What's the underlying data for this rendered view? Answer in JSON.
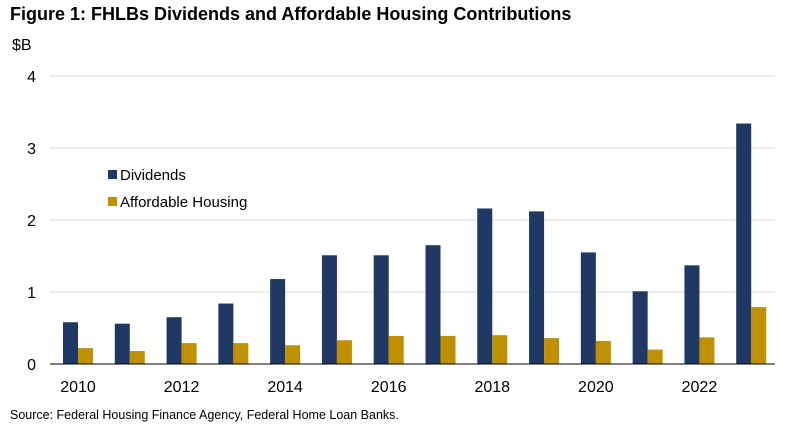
{
  "title": "Figure 1: FHLBs Dividends and Affordable Housing Contributions",
  "source": "Source: Federal Housing Finance Agency, Federal Home Loan Banks.",
  "colors": {
    "dividends": "#1f3864",
    "affordable_housing": "#bf9000",
    "grid": "#d9d9d9",
    "axis": "#000000"
  },
  "chart_data": {
    "type": "bar",
    "title": "Figure 1: FHLBs Dividends and Affordable Housing Contributions",
    "ylabel": "$B",
    "ylim": [
      0,
      4
    ],
    "yticks": [
      "0",
      "1",
      "2",
      "3",
      "4"
    ],
    "categories": [
      2010,
      2011,
      2012,
      2013,
      2014,
      2015,
      2016,
      2017,
      2018,
      2019,
      2020,
      2021,
      2022,
      2023
    ],
    "xtick_labels": [
      "2010",
      "",
      "2012",
      "",
      "2014",
      "",
      "2016",
      "",
      "2018",
      "",
      "2020",
      "",
      "2022",
      ""
    ],
    "series": [
      {
        "name": "Dividends",
        "values": [
          0.58,
          0.56,
          0.65,
          0.84,
          1.18,
          1.51,
          1.51,
          1.65,
          2.16,
          2.12,
          1.55,
          1.01,
          1.37,
          3.34
        ]
      },
      {
        "name": "Affordable Housing",
        "values": [
          0.22,
          0.18,
          0.29,
          0.29,
          0.26,
          0.33,
          0.39,
          0.39,
          0.4,
          0.36,
          0.32,
          0.2,
          0.37,
          0.79
        ]
      }
    ],
    "legend": "top-left",
    "grid": true
  }
}
